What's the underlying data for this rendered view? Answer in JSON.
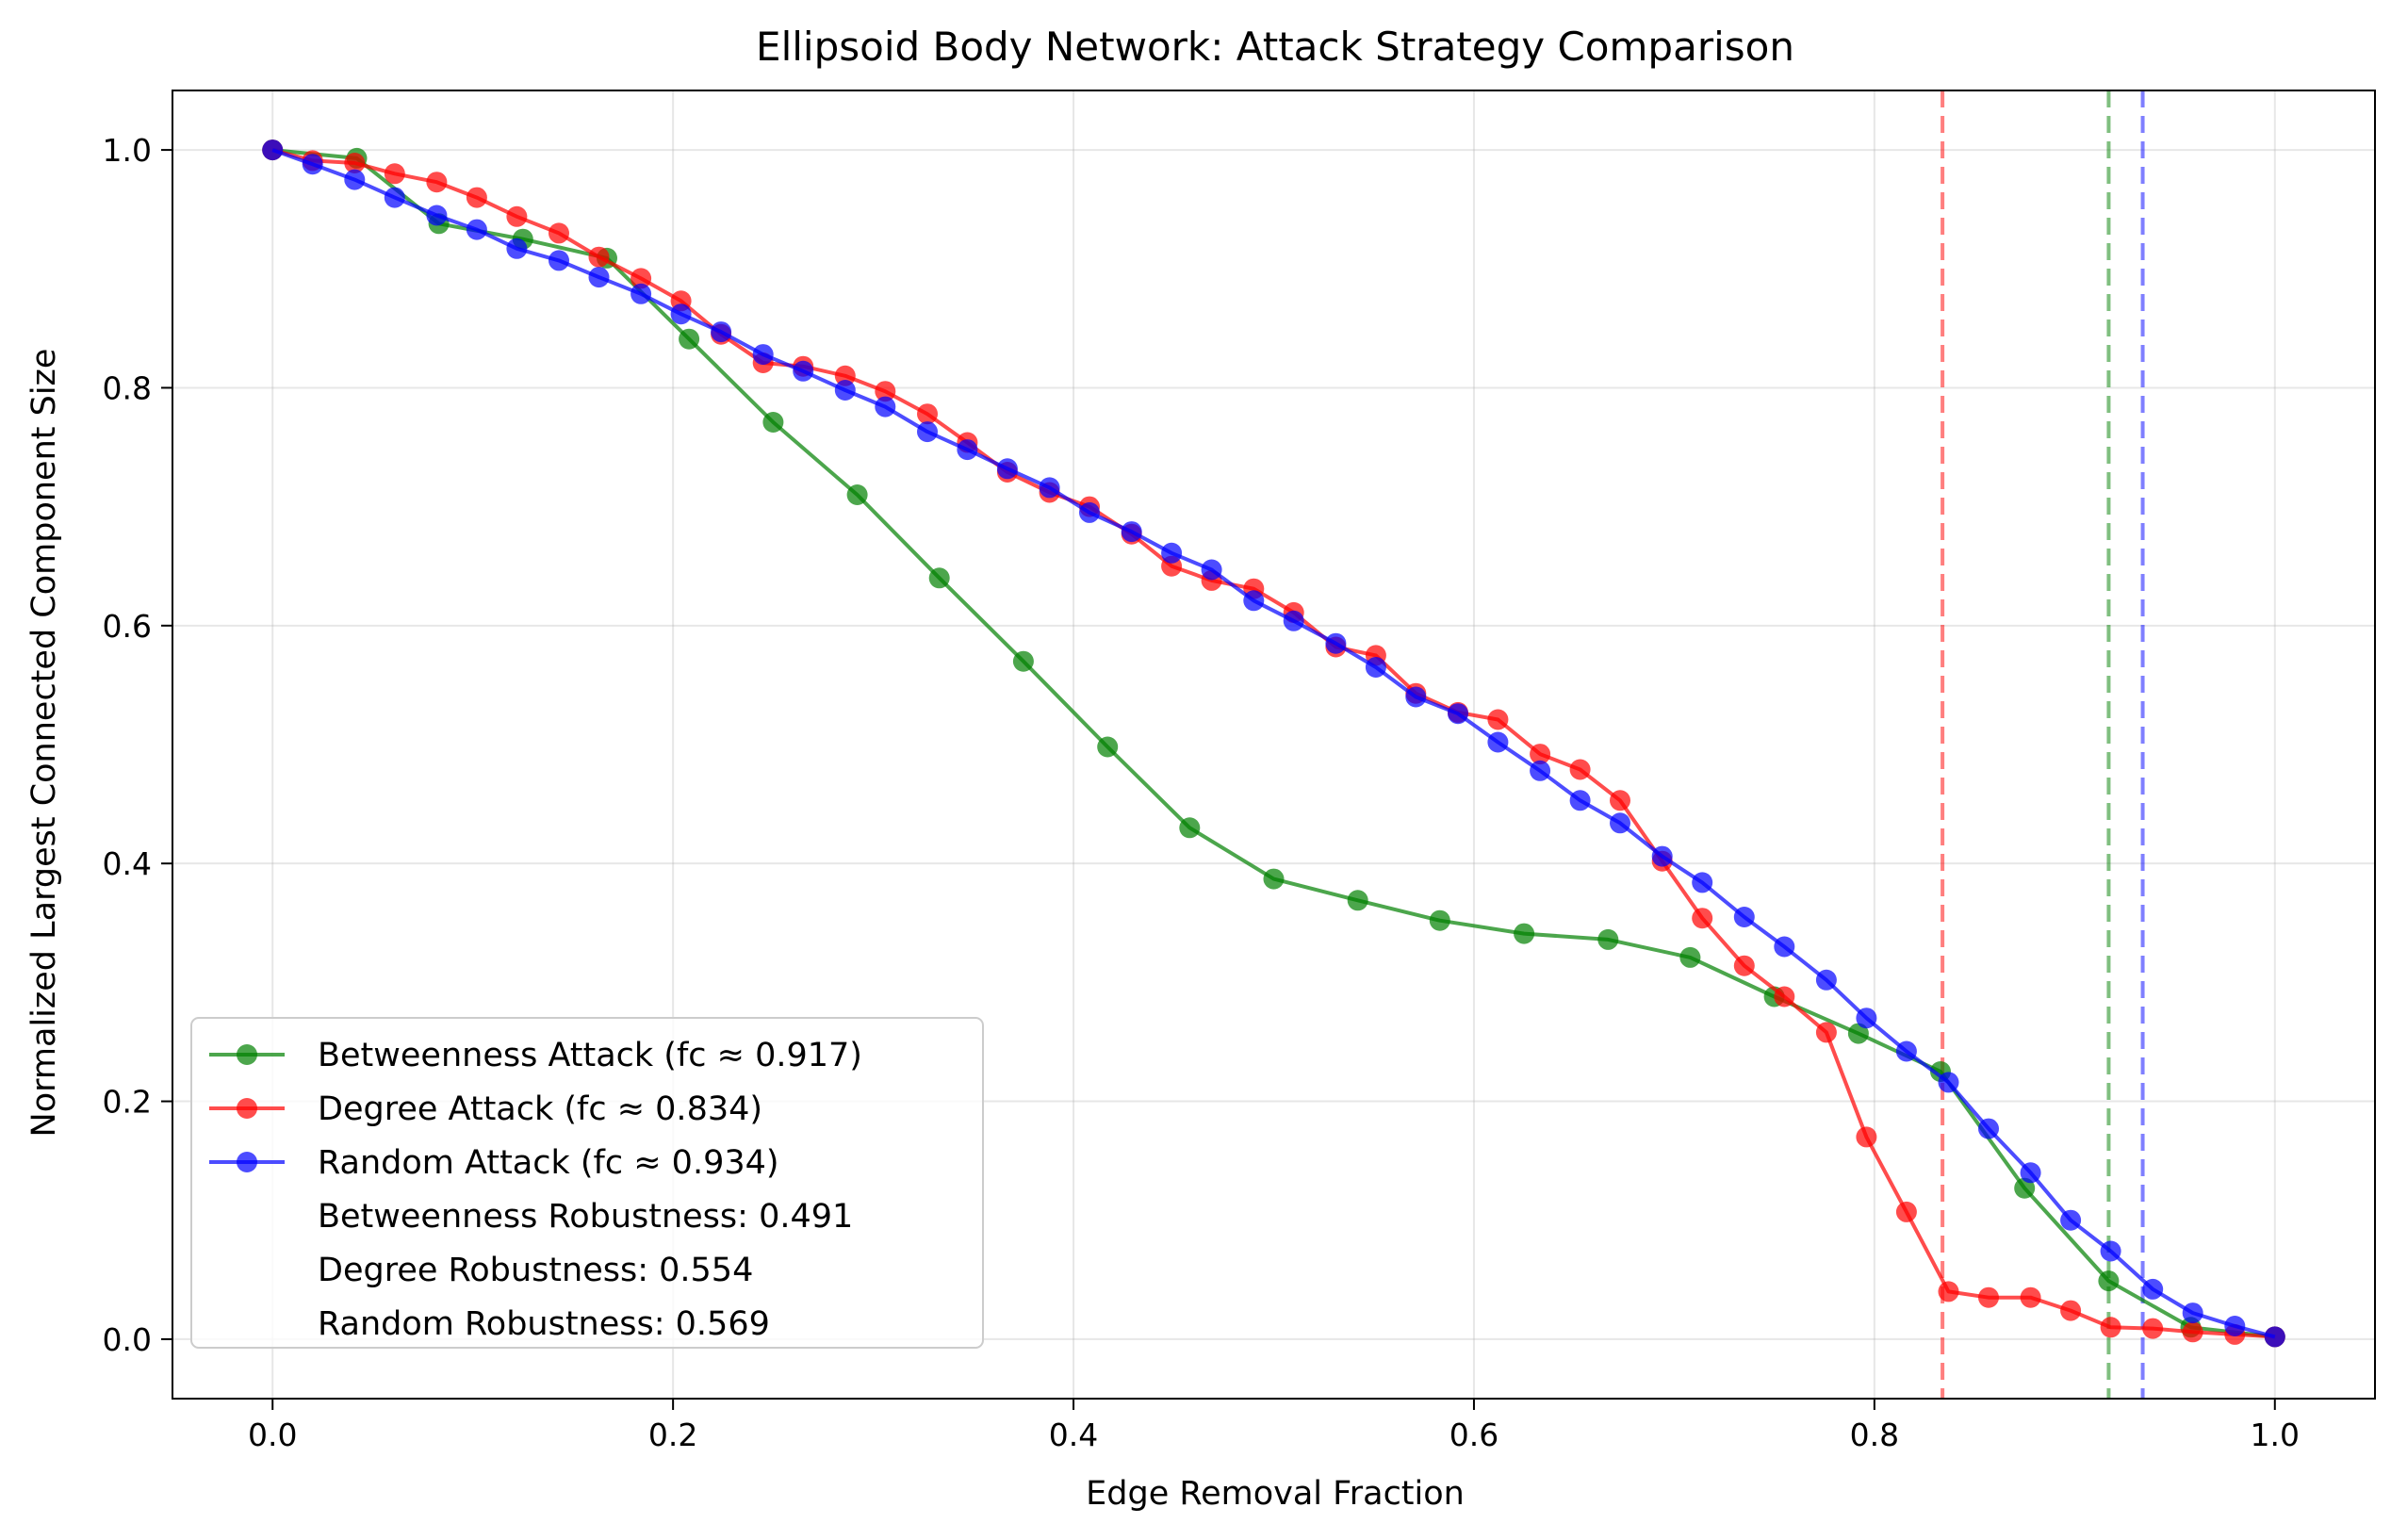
{
  "chart_data": {
    "type": "line",
    "title": "Ellipsoid Body Network: Attack Strategy Comparison",
    "xlabel": "Edge Removal Fraction",
    "ylabel": "Normalized Largest Connected Component Size",
    "xlim": [
      -0.05,
      1.05
    ],
    "ylim": [
      -0.05,
      1.05
    ],
    "xticks": [
      0.0,
      0.2,
      0.4,
      0.6,
      0.8,
      1.0
    ],
    "yticks": [
      0.0,
      0.2,
      0.4,
      0.6,
      0.8,
      1.0
    ],
    "xtick_labels": [
      "0.0",
      "0.2",
      "0.4",
      "0.6",
      "0.8",
      "1.0"
    ],
    "ytick_labels": [
      "0.0",
      "0.2",
      "0.4",
      "0.6",
      "0.8",
      "1.0"
    ],
    "grid": true,
    "legend_position": "lower-left",
    "series": [
      {
        "name": "Betweenness Attack (fc ≈ 0.917)",
        "color": "#008000",
        "x": [
          0.0,
          0.042,
          0.083,
          0.125,
          0.167,
          0.208,
          0.25,
          0.292,
          0.333,
          0.375,
          0.417,
          0.458,
          0.5,
          0.542,
          0.583,
          0.625,
          0.667,
          0.708,
          0.75,
          0.792,
          0.833,
          0.875,
          0.917,
          0.958,
          1.0
        ],
        "y": [
          1.0,
          0.993,
          0.938,
          0.925,
          0.909,
          0.841,
          0.771,
          0.71,
          0.64,
          0.57,
          0.498,
          0.43,
          0.387,
          0.369,
          0.352,
          0.341,
          0.336,
          0.321,
          0.288,
          0.257,
          0.225,
          0.127,
          0.049,
          0.01,
          0.002
        ]
      },
      {
        "name": "Degree Attack (fc ≈ 0.834)",
        "color": "#ff0000",
        "x": [
          0.0,
          0.02,
          0.041,
          0.061,
          0.082,
          0.102,
          0.122,
          0.143,
          0.163,
          0.184,
          0.204,
          0.224,
          0.245,
          0.265,
          0.286,
          0.306,
          0.327,
          0.347,
          0.367,
          0.388,
          0.408,
          0.429,
          0.449,
          0.469,
          0.49,
          0.51,
          0.531,
          0.551,
          0.571,
          0.592,
          0.612,
          0.633,
          0.653,
          0.673,
          0.694,
          0.714,
          0.735,
          0.755,
          0.776,
          0.796,
          0.816,
          0.837,
          0.857,
          0.878,
          0.898,
          0.918,
          0.939,
          0.959,
          0.98,
          1.0
        ],
        "y": [
          1.0,
          0.991,
          0.989,
          0.98,
          0.973,
          0.96,
          0.944,
          0.93,
          0.91,
          0.892,
          0.873,
          0.845,
          0.821,
          0.818,
          0.81,
          0.797,
          0.778,
          0.754,
          0.729,
          0.712,
          0.7,
          0.677,
          0.65,
          0.638,
          0.631,
          0.611,
          0.582,
          0.575,
          0.543,
          0.527,
          0.521,
          0.492,
          0.479,
          0.453,
          0.402,
          0.354,
          0.314,
          0.288,
          0.258,
          0.17,
          0.107,
          0.04,
          0.035,
          0.035,
          0.024,
          0.01,
          0.009,
          0.006,
          0.004,
          0.002
        ]
      },
      {
        "name": "Random Attack (fc ≈ 0.934)",
        "color": "#0000ff",
        "x": [
          0.0,
          0.02,
          0.041,
          0.061,
          0.082,
          0.102,
          0.122,
          0.143,
          0.163,
          0.184,
          0.204,
          0.224,
          0.245,
          0.265,
          0.286,
          0.306,
          0.327,
          0.347,
          0.367,
          0.388,
          0.408,
          0.429,
          0.449,
          0.469,
          0.49,
          0.51,
          0.531,
          0.551,
          0.571,
          0.592,
          0.612,
          0.633,
          0.653,
          0.673,
          0.694,
          0.714,
          0.735,
          0.755,
          0.776,
          0.796,
          0.816,
          0.837,
          0.857,
          0.878,
          0.898,
          0.918,
          0.939,
          0.959,
          0.98,
          1.0
        ],
        "y": [
          1.0,
          0.988,
          0.975,
          0.96,
          0.945,
          0.933,
          0.917,
          0.907,
          0.893,
          0.879,
          0.862,
          0.847,
          0.828,
          0.814,
          0.798,
          0.784,
          0.763,
          0.748,
          0.732,
          0.716,
          0.695,
          0.679,
          0.661,
          0.647,
          0.621,
          0.604,
          0.585,
          0.565,
          0.54,
          0.526,
          0.502,
          0.478,
          0.453,
          0.434,
          0.406,
          0.384,
          0.355,
          0.33,
          0.302,
          0.27,
          0.242,
          0.216,
          0.177,
          0.14,
          0.1,
          0.074,
          0.042,
          0.022,
          0.011,
          0.002
        ]
      }
    ],
    "vlines": [
      {
        "x": 0.834,
        "color": "#ff0000"
      },
      {
        "x": 0.917,
        "color": "#008000"
      },
      {
        "x": 0.934,
        "color": "#0000ff"
      }
    ],
    "legend_extra": [
      "Betweenness Robustness: 0.491",
      "Degree Robustness: 0.554",
      "Random Robustness: 0.569"
    ]
  }
}
